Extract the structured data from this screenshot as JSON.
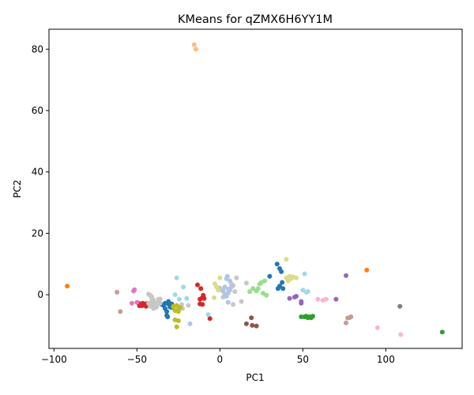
{
  "chart_data": {
    "type": "scatter",
    "title": "KMeans for qZMX6H6YY1M",
    "xlabel": "PC1",
    "ylabel": "PC2",
    "xlim": [
      -103,
      146
    ],
    "ylim": [
      -17.5,
      86.5
    ],
    "xticks": [
      -100,
      -50,
      0,
      50,
      100
    ],
    "yticks": [
      0,
      20,
      40,
      60,
      80
    ],
    "grid": false,
    "legend": "none",
    "clusters": [
      {
        "color": "#ff7f0e",
        "points": [
          [
            -92,
            2.8
          ],
          [
            88.5,
            8
          ]
        ]
      },
      {
        "color": "#ffbb78",
        "points": [
          [
            -15.5,
            81.5
          ],
          [
            -14.5,
            80
          ]
        ]
      },
      {
        "color": "#1f77b4",
        "points": [
          [
            -35,
            -3.2
          ],
          [
            -34,
            -3.5
          ],
          [
            -33,
            -4.5
          ],
          [
            -32,
            -5.5
          ],
          [
            -32,
            -6.8
          ],
          [
            -31,
            -3
          ],
          [
            -31,
            -2.2
          ],
          [
            -30,
            -4
          ],
          [
            -30,
            -3.5
          ],
          [
            -29,
            -4.2
          ],
          [
            -29,
            -3
          ],
          [
            -33,
            -2.8
          ],
          [
            -31.5,
            -7.2
          ],
          [
            30,
            6
          ],
          [
            34.5,
            10
          ],
          [
            36,
            8.5
          ],
          [
            37,
            7.5
          ],
          [
            37.5,
            4
          ],
          [
            38,
            2
          ],
          [
            36,
            2.8
          ],
          [
            35,
            2
          ]
        ]
      },
      {
        "color": "#d62728",
        "points": [
          [
            -49,
            -2.8
          ],
          [
            -48,
            -3.2
          ],
          [
            -47,
            -3.6
          ],
          [
            -46.5,
            -2.8
          ],
          [
            -46,
            -3.4
          ],
          [
            -45,
            -3
          ],
          [
            -44.5,
            -3.8
          ],
          [
            -44,
            -3.2
          ],
          [
            -43.5,
            -2.8
          ],
          [
            -48.5,
            -3.6
          ],
          [
            -13.5,
            3.2
          ],
          [
            -11.5,
            2
          ],
          [
            -11,
            -1.2
          ],
          [
            -10,
            -0.2
          ],
          [
            -10.5,
            -3.2
          ],
          [
            -9.5,
            -1.2
          ],
          [
            -12,
            -1.5
          ],
          [
            -12,
            -3
          ],
          [
            -6,
            -7.8
          ]
        ]
      },
      {
        "color": "#c7c7c7",
        "points": [
          [
            -43,
            0.2
          ],
          [
            -42,
            -0.2
          ],
          [
            -41,
            -1.2
          ],
          [
            -41,
            -2.2
          ],
          [
            -40,
            -1.8
          ],
          [
            -39,
            -2.8
          ],
          [
            -38,
            -3.2
          ],
          [
            -37,
            -2.2
          ],
          [
            -38.5,
            -4.2
          ],
          [
            -40,
            -4.5
          ],
          [
            -42,
            -3.8
          ],
          [
            -37,
            -1.5
          ],
          [
            -36,
            -1.4
          ],
          [
            -40.5,
            -3.2
          ],
          [
            -38,
            -3.8
          ],
          [
            -43,
            -2.8
          ],
          [
            -41,
            -0.7
          ],
          [
            -36,
            -2.8
          ],
          [
            -23,
            -3.2
          ],
          [
            -22.5,
            -4.5
          ],
          [
            -19,
            -3.5
          ],
          [
            0,
            2.2
          ],
          [
            1,
            1.5
          ],
          [
            2,
            1.2
          ],
          [
            5,
            1.8
          ],
          [
            7,
            3.5
          ],
          [
            8,
            3
          ],
          [
            9,
            1
          ],
          [
            10,
            5.5
          ],
          [
            13,
            -2.2
          ],
          [
            8,
            -3.2
          ],
          [
            2,
            -0.8
          ],
          [
            16,
            3.8
          ]
        ]
      },
      {
        "color": "#aec7e8",
        "points": [
          [
            2,
            1.2
          ],
          [
            3,
            2.5
          ],
          [
            4,
            5.2
          ],
          [
            4.5,
            6
          ],
          [
            5,
            0.5
          ],
          [
            6,
            4.5
          ],
          [
            6,
            1.5
          ],
          [
            4,
            -0.5
          ],
          [
            5,
            -2.5
          ],
          [
            3,
            0.2
          ],
          [
            7,
            2.5
          ],
          [
            -18,
            -9.5
          ]
        ]
      },
      {
        "color": "#9edae5",
        "points": [
          [
            -26,
            5.5
          ],
          [
            -22,
            2.5
          ],
          [
            -27,
            0
          ],
          [
            -24.5,
            -1.5
          ],
          [
            -20,
            -1.2
          ],
          [
            -7,
            -6.5
          ],
          [
            50,
            1.5
          ],
          [
            51,
            6.8
          ],
          [
            53,
            1
          ],
          [
            52,
            0.8
          ]
        ]
      },
      {
        "color": "#bcbd22",
        "points": [
          [
            -28,
            -4
          ],
          [
            -27,
            -5.2
          ],
          [
            -26,
            -3.5
          ],
          [
            -25,
            -5.5
          ],
          [
            -24,
            -4.2
          ],
          [
            -27,
            -8.2
          ],
          [
            -26,
            -10.5
          ],
          [
            -25,
            -8.5
          ],
          [
            -28,
            -3.8
          ],
          [
            -25,
            -4.8
          ]
        ]
      },
      {
        "color": "#dbdb8d",
        "points": [
          [
            -3,
            3.5
          ],
          [
            -2,
            2.5
          ],
          [
            -1,
            1.5
          ],
          [
            0,
            5.5
          ],
          [
            -3.5,
            -1
          ],
          [
            40,
            11.5
          ],
          [
            41,
            4.5
          ],
          [
            42,
            6
          ],
          [
            43,
            5.2
          ],
          [
            44,
            5.8
          ],
          [
            46,
            5.5
          ],
          [
            40,
            5.5
          ]
        ]
      },
      {
        "color": "#98df8a",
        "points": [
          [
            18,
            1
          ],
          [
            20,
            2
          ],
          [
            22,
            1.2
          ],
          [
            23,
            2
          ],
          [
            24,
            3.5
          ],
          [
            25,
            4
          ],
          [
            26,
            0.5
          ],
          [
            27,
            4.5
          ],
          [
            28,
            -0.2
          ]
        ]
      },
      {
        "color": "#2ca02c",
        "points": [
          [
            49,
            -7.2
          ],
          [
            51,
            -7.2
          ],
          [
            52,
            -7
          ],
          [
            53,
            -7.5
          ],
          [
            54,
            -7.2
          ],
          [
            55,
            -7.5
          ],
          [
            56,
            -7
          ],
          [
            134,
            -12.2
          ]
        ]
      },
      {
        "color": "#e377c2",
        "points": [
          [
            -53,
            -2.8
          ],
          [
            -52,
            1.2
          ],
          [
            -51.5,
            1.6
          ],
          [
            -50,
            -2.5
          ]
        ]
      },
      {
        "color": "#c49c94",
        "points": [
          [
            -62,
            0.8
          ],
          [
            -60,
            -5.5
          ],
          [
            76,
            -9.2
          ],
          [
            77,
            -7.6
          ],
          [
            78,
            -7.5
          ],
          [
            79,
            -7.2
          ]
        ]
      },
      {
        "color": "#8c564b",
        "points": [
          [
            16,
            -9.5
          ],
          [
            19,
            -7.5
          ],
          [
            19.5,
            -10
          ],
          [
            22,
            -10.2
          ]
        ]
      },
      {
        "color": "#9467bd",
        "points": [
          [
            42,
            -1.2
          ],
          [
            45,
            -0.8
          ],
          [
            46,
            -0.5
          ],
          [
            49,
            -2.2
          ],
          [
            49,
            -2.8
          ],
          [
            70,
            -1.5
          ],
          [
            76,
            6.2
          ]
        ]
      },
      {
        "color": "#f7b6d2",
        "points": [
          [
            59,
            -1.5
          ],
          [
            62,
            -1.8
          ],
          [
            64,
            -1.5
          ],
          [
            95,
            -10.8
          ],
          [
            109,
            -13
          ]
        ]
      },
      {
        "color": "#7f7f7f",
        "points": [
          [
            108.5,
            -3.8
          ]
        ]
      }
    ]
  }
}
